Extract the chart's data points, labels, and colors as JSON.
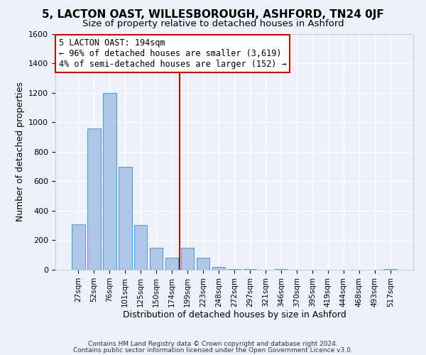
{
  "title": "5, LACTON OAST, WILLESBOROUGH, ASHFORD, TN24 0JF",
  "subtitle": "Size of property relative to detached houses in Ashford",
  "xlabel": "Distribution of detached houses by size in Ashford",
  "ylabel": "Number of detached properties",
  "bar_labels": [
    "27sqm",
    "52sqm",
    "76sqm",
    "101sqm",
    "125sqm",
    "150sqm",
    "174sqm",
    "199sqm",
    "223sqm",
    "248sqm",
    "272sqm",
    "297sqm",
    "321sqm",
    "346sqm",
    "370sqm",
    "395sqm",
    "419sqm",
    "444sqm",
    "468sqm",
    "493sqm",
    "517sqm"
  ],
  "bar_values": [
    310,
    960,
    1200,
    700,
    305,
    150,
    80,
    150,
    80,
    20,
    5,
    5,
    0,
    5,
    0,
    0,
    0,
    0,
    0,
    0,
    5
  ],
  "bar_color": "#aec6e8",
  "bar_edge_color": "#5a9fd4",
  "property_line_index": 7,
  "property_line_color": "#cc0000",
  "annotation_text_line1": "5 LACTON OAST: 194sqm",
  "annotation_text_line2": "← 96% of detached houses are smaller (3,619)",
  "annotation_text_line3": "4% of semi-detached houses are larger (152) →",
  "annotation_box_edge": "#cc0000",
  "ylim": [
    0,
    1600
  ],
  "yticks": [
    0,
    200,
    400,
    600,
    800,
    1000,
    1200,
    1400,
    1600
  ],
  "footer1": "Contains HM Land Registry data © Crown copyright and database right 2024.",
  "footer2": "Contains public sector information licensed under the Open Government Licence v3.0.",
  "bg_color": "#edf2fa",
  "plot_bg_color": "#edf2fa",
  "grid_color": "#ffffff",
  "title_fontsize": 11,
  "subtitle_fontsize": 9.5
}
